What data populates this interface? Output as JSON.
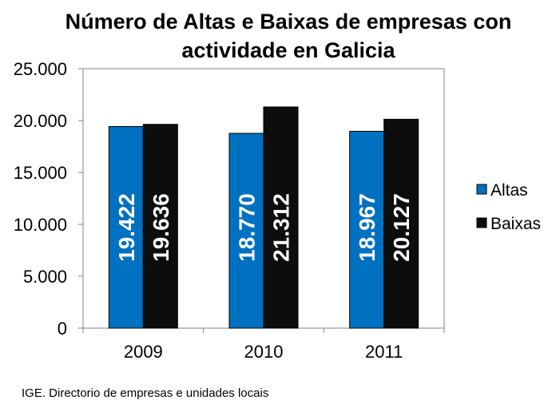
{
  "source": "IGE. Directorio de empresas e unidades locais",
  "chart_data": {
    "type": "bar",
    "title_lines": [
      "Número de Altas e Baixas de empresas con",
      "actividade en Galicia"
    ],
    "categories": [
      "2009",
      "2010",
      "2011"
    ],
    "series": [
      {
        "name": "Altas",
        "color": "#0070C0",
        "values": [
          19422,
          18770,
          18967
        ],
        "labels": [
          "19.422",
          "18.770",
          "18.967"
        ]
      },
      {
        "name": "Baixas",
        "color": "#0D0D0D",
        "values": [
          19636,
          21312,
          20127
        ],
        "labels": [
          "19.636",
          "21.312",
          "20.127"
        ]
      }
    ],
    "ylim": [
      0,
      25000
    ],
    "y_ticks": [
      0,
      5000,
      10000,
      15000,
      20000,
      25000
    ],
    "y_tick_labels": [
      "0",
      "5.000",
      "10.000",
      "15.000",
      "20.000",
      "25.000"
    ],
    "xlabel": "",
    "ylabel": "",
    "grid": false,
    "legend_position": "right"
  }
}
